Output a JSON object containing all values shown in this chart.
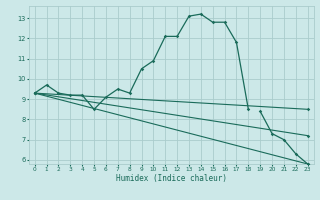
{
  "background_color": "#cce8e8",
  "grid_color": "#aacccc",
  "line_color": "#1a6b5a",
  "xlabel": "Humidex (Indice chaleur)",
  "xlim": [
    -0.5,
    23.5
  ],
  "ylim": [
    5.8,
    13.6
  ],
  "yticks": [
    6,
    7,
    8,
    9,
    10,
    11,
    12,
    13
  ],
  "xticks": [
    0,
    1,
    2,
    3,
    4,
    5,
    6,
    7,
    8,
    9,
    10,
    11,
    12,
    13,
    14,
    15,
    16,
    17,
    18,
    19,
    20,
    21,
    22,
    23
  ],
  "curves": [
    {
      "x": [
        0,
        1,
        2,
        3,
        4,
        5,
        6,
        7,
        8,
        9,
        10,
        11,
        12,
        13,
        14,
        15,
        16,
        17,
        18
      ],
      "y": [
        9.3,
        9.7,
        9.3,
        9.2,
        9.2,
        8.5,
        9.1,
        9.5,
        9.3,
        10.5,
        10.9,
        12.1,
        12.1,
        13.1,
        13.2,
        12.8,
        12.8,
        11.8,
        8.5
      ]
    },
    {
      "x": [
        0,
        1,
        2,
        3,
        4,
        5,
        6,
        7,
        8,
        9,
        10,
        11,
        12,
        13,
        14,
        15,
        16,
        17,
        18,
        19,
        20,
        21,
        22,
        23
      ],
      "y": [
        9.3,
        9.7,
        9.3,
        9.2,
        9.2,
        8.5,
        9.1,
        9.5,
        9.3,
        10.5,
        10.9,
        12.1,
        12.1,
        13.1,
        13.2,
        12.8,
        12.8,
        11.8,
        8.5,
        8.4,
        7.3,
        7.0,
        6.3,
        5.8
      ]
    },
    {
      "x": [
        0,
        23
      ],
      "y": [
        9.3,
        5.8
      ]
    },
    {
      "x": [
        0,
        23
      ],
      "y": [
        9.3,
        7.2
      ]
    },
    {
      "x": [
        0,
        23
      ],
      "y": [
        9.3,
        8.5
      ]
    }
  ]
}
